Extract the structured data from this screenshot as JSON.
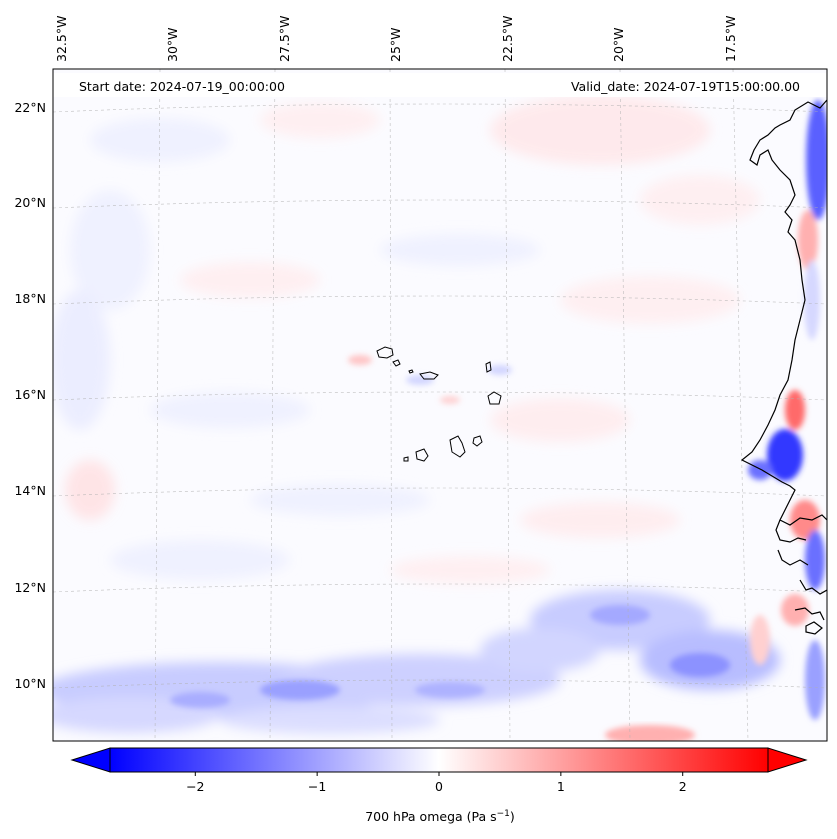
{
  "map": {
    "header_left": "Start date: 2024-07-19_00:00:00",
    "header_right": "Valid_date: 2024-07-19T15:00:00.00",
    "lon_labels": [
      "32.5°W",
      "30°W",
      "27.5°W",
      "25°W",
      "22.5°W",
      "20°W",
      "17.5°W"
    ],
    "lat_labels": [
      "22°N",
      "20°N",
      "18°N",
      "16°N",
      "14°N",
      "12°N",
      "10°N"
    ],
    "colors": {
      "negative": "#0000ff",
      "neutral": "#ffffff",
      "positive": "#ff0000",
      "coast": "#000000",
      "grid": "#b0b0b0"
    }
  },
  "colorbar": {
    "label_prefix": "700 hPa omega (Pa s",
    "label_exponent": "−1",
    "label_suffix": ")",
    "ticks": [
      "−2",
      "−1",
      "0",
      "1",
      "2"
    ],
    "min": -2.7,
    "max": 2.7,
    "tick_values": [
      -2,
      -1,
      0,
      1,
      2
    ]
  }
}
